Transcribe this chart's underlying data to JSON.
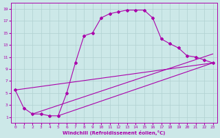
{
  "xlabel": "Windchill (Refroidissement éolien,°C)",
  "bg_color": "#cce8e8",
  "grid_color": "#b0d0d0",
  "line_color": "#aa00aa",
  "xlim": [
    -0.5,
    23.5
  ],
  "ylim": [
    0,
    20
  ],
  "xticks": [
    0,
    1,
    2,
    3,
    4,
    5,
    6,
    7,
    8,
    9,
    10,
    11,
    12,
    13,
    14,
    15,
    16,
    17,
    18,
    19,
    20,
    21,
    22,
    23
  ],
  "yticks": [
    1,
    3,
    5,
    7,
    9,
    11,
    13,
    15,
    17,
    19
  ],
  "main_curve": {
    "x": [
      0,
      1,
      2,
      3,
      4,
      5,
      6,
      7,
      8,
      9,
      10,
      11,
      12,
      13,
      14,
      15,
      16,
      17,
      18,
      19,
      20,
      21,
      22,
      23
    ],
    "y": [
      5.5,
      2.5,
      1.5,
      1.5,
      1.2,
      1.2,
      5.0,
      10.0,
      14.5,
      15.0,
      17.5,
      18.2,
      18.5,
      18.8,
      18.8,
      18.8,
      17.5,
      14.0,
      13.2,
      12.5,
      11.2,
      11.0,
      10.5,
      10.0
    ]
  },
  "line1": {
    "x": [
      0,
      23
    ],
    "y": [
      5.5,
      10.0
    ]
  },
  "line2": {
    "x": [
      2,
      23
    ],
    "y": [
      1.5,
      11.5
    ]
  },
  "line3": {
    "x": [
      5,
      23
    ],
    "y": [
      1.2,
      10.0
    ]
  }
}
